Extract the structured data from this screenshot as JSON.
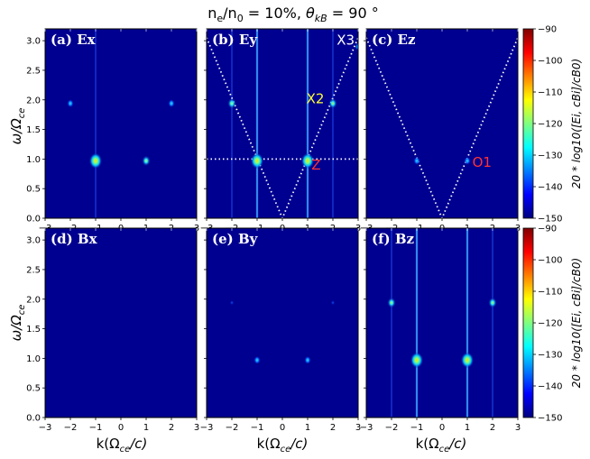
{
  "title": "nₑ/n₀ = 10%,  θₖʙ = 90°",
  "title_parts": {
    "n": "n",
    "e": "e",
    "slash": "/n",
    "zero": "0",
    "eq": " = 10%,  ",
    "theta": "θ",
    "kB": "kB",
    "deg": " = 90 °"
  },
  "xlabel": "k(Ωce/c)",
  "xlabel_parts": {
    "k": "k(Ω",
    "ce": "ce",
    "c": "/c)"
  },
  "ylabel_parts": {
    "w": "ω/Ω",
    "ce": "ce"
  },
  "colorbar": {
    "label": "20 * log10[Eᵢ, cBᵢ]/cB₀",
    "label_top": "20 * log10([Ei, cBi]/cB0)",
    "label_bottom": "20 * log10([Ei, cBi]/cB0)",
    "ticks": [
      "−90",
      "−100",
      "−110",
      "−120",
      "−130",
      "−140",
      "−150"
    ],
    "colors": [
      "#00007f",
      "#0000ff",
      "#007fff",
      "#00ffff",
      "#7fff7f",
      "#ffff00",
      "#ff7f00",
      "#ff0000",
      "#7f0000"
    ]
  },
  "mode_labels": {
    "x3": "X3",
    "x2": "X2",
    "z": "Z",
    "o1": "O1"
  },
  "mode_colors": {
    "x3": "#ffffff",
    "x2": "#ffff33",
    "z": "#ff3333",
    "o1": "#ff3333"
  },
  "chart_data": [
    {
      "type": "heatmap",
      "panel": "(a) Ex",
      "xlim": [
        -3,
        3
      ],
      "ylim": [
        0,
        3.2
      ],
      "xticks": [
        "−3",
        "−2",
        "−1",
        "0",
        "1",
        "2",
        "3"
      ],
      "yticks": [
        "0.0",
        "0.5",
        "1.0",
        "1.5",
        "2.0",
        "2.5",
        "3.0"
      ],
      "hotspots": [
        {
          "k": -1,
          "w": 0.97,
          "level": "high"
        },
        {
          "k": 1,
          "w": 0.97,
          "level": "mid"
        },
        {
          "k": -2,
          "w": 1.94,
          "level": "low"
        },
        {
          "k": 2,
          "w": 1.94,
          "level": "low"
        }
      ],
      "vertical_lines": [
        {
          "k": -1,
          "level": "faint"
        }
      ]
    },
    {
      "type": "heatmap",
      "panel": "(b) Ey",
      "xlim": [
        -3,
        3
      ],
      "ylim": [
        0,
        3.2
      ],
      "xticks": [
        "−3",
        "−2",
        "−1",
        "0",
        "1",
        "2",
        "3"
      ],
      "hotspots": [
        {
          "k": -1,
          "w": 0.97,
          "level": "high"
        },
        {
          "k": 1,
          "w": 0.97,
          "level": "high"
        },
        {
          "k": -2,
          "w": 1.94,
          "level": "mid"
        },
        {
          "k": 2,
          "w": 1.94,
          "level": "mid"
        },
        {
          "k": 3,
          "w": 2.9,
          "level": "low"
        }
      ],
      "vertical_lines": [
        {
          "k": -1,
          "level": "mid"
        },
        {
          "k": 1,
          "level": "mid"
        },
        {
          "k": -2,
          "level": "faint"
        },
        {
          "k": 2,
          "level": "faint"
        }
      ],
      "dispersion": {
        "v_shape": [
          [
            -3,
            3.05
          ],
          [
            0,
            0
          ],
          [
            3,
            3.05
          ]
        ],
        "horizontal": [
          [
            -3,
            1.0
          ],
          [
            3,
            1.0
          ]
        ]
      }
    },
    {
      "type": "heatmap",
      "panel": "(c) Ez",
      "xlim": [
        -3,
        3
      ],
      "ylim": [
        0,
        3.2
      ],
      "xticks": [
        "−3",
        "−2",
        "−1",
        "0",
        "1",
        "2",
        "3"
      ],
      "hotspots": [
        {
          "k": -1,
          "w": 0.97,
          "level": "low"
        },
        {
          "k": 1,
          "w": 0.97,
          "level": "low"
        }
      ],
      "vertical_lines": [],
      "dispersion": {
        "v_shape": [
          [
            -3,
            3.05
          ],
          [
            0,
            0
          ],
          [
            3,
            3.05
          ]
        ]
      }
    },
    {
      "type": "heatmap",
      "panel": "(d) Bx",
      "xlim": [
        -3,
        3
      ],
      "ylim": [
        0,
        3.2
      ],
      "xticks": [
        "−3",
        "−2",
        "−1",
        "0",
        "1",
        "2",
        "3"
      ],
      "yticks": [
        "0.0",
        "0.5",
        "1.0",
        "1.5",
        "2.0",
        "2.5",
        "3.0"
      ],
      "hotspots": [],
      "vertical_lines": []
    },
    {
      "type": "heatmap",
      "panel": "(e) By",
      "xlim": [
        -3,
        3
      ],
      "ylim": [
        0,
        3.2
      ],
      "xticks": [
        "−3",
        "−2",
        "−1",
        "0",
        "1",
        "2",
        "3"
      ],
      "hotspots": [
        {
          "k": -1,
          "w": 0.97,
          "level": "low"
        },
        {
          "k": 1,
          "w": 0.97,
          "level": "low"
        },
        {
          "k": -2,
          "w": 1.94,
          "level": "faint"
        },
        {
          "k": 2,
          "w": 1.94,
          "level": "faint"
        }
      ],
      "vertical_lines": []
    },
    {
      "type": "heatmap",
      "panel": "(f) Bz",
      "xlim": [
        -3,
        3
      ],
      "ylim": [
        0,
        3.2
      ],
      "xticks": [
        "−3",
        "−2",
        "−1",
        "0",
        "1",
        "2",
        "3"
      ],
      "hotspots": [
        {
          "k": -1,
          "w": 0.97,
          "level": "high"
        },
        {
          "k": 1,
          "w": 0.97,
          "level": "high"
        },
        {
          "k": -2,
          "w": 1.94,
          "level": "mid"
        },
        {
          "k": 2,
          "w": 1.94,
          "level": "mid"
        }
      ],
      "vertical_lines": [
        {
          "k": -1,
          "level": "mid"
        },
        {
          "k": 1,
          "level": "mid"
        },
        {
          "k": -2,
          "level": "faint"
        },
        {
          "k": 2,
          "level": "faint"
        }
      ]
    }
  ]
}
